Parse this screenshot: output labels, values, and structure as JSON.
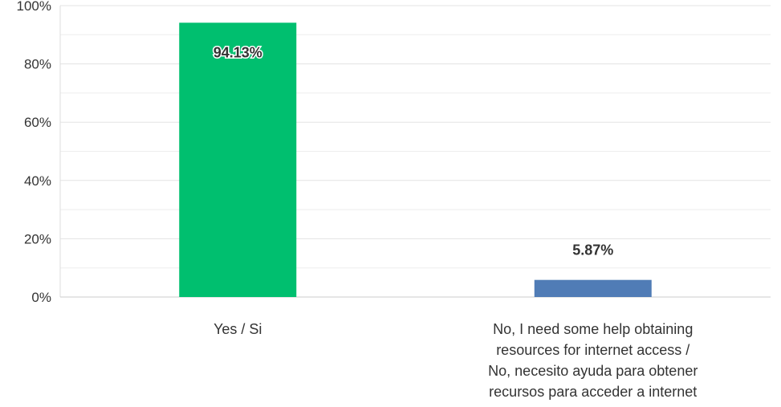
{
  "chart_data": {
    "type": "bar",
    "categories": [
      "Yes / Si",
      "No, I need some help obtaining resources for internet access / No, necesito ayuda para obtener recursos para acceder a internet"
    ],
    "category_lines": [
      [
        "Yes / Si"
      ],
      [
        "No, I need some help obtaining",
        "resources for internet access /",
        "No, necesito ayuda para obtener",
        "recursos para acceder a internet"
      ]
    ],
    "values": [
      94.13,
      5.87
    ],
    "data_labels": [
      "94.13%",
      "5.87%"
    ],
    "colors": [
      "#00bf6f",
      "#507cb6"
    ],
    "ylim": [
      0,
      100
    ],
    "yticks": [
      0,
      20,
      40,
      60,
      80,
      100
    ],
    "ytick_labels": [
      "0%",
      "20%",
      "40%",
      "60%",
      "80%",
      "100%"
    ],
    "title": "",
    "xlabel": "",
    "ylabel": "",
    "grid": true,
    "legend": "none"
  }
}
